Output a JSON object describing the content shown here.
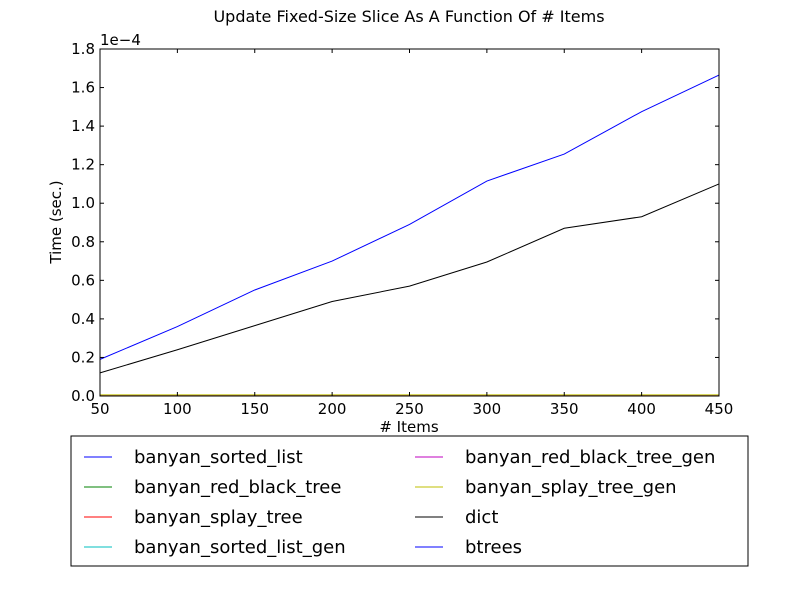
{
  "chart_data": {
    "type": "line",
    "title": "Update Fixed-Size Slice As A Function Of # Items",
    "xlabel": "# Items",
    "ylabel": "Time (sec.)",
    "y_offset_label": "1e−4",
    "x": [
      50,
      100,
      150,
      200,
      250,
      300,
      350,
      400,
      450
    ],
    "xlim": [
      50,
      450
    ],
    "ylim": [
      0,
      1.8
    ],
    "xticks": [
      50,
      100,
      150,
      200,
      250,
      300,
      350,
      400,
      450
    ],
    "yticks": [
      0.0,
      0.2,
      0.4,
      0.6,
      0.8,
      1.0,
      1.2,
      1.4,
      1.6,
      1.8
    ],
    "ytick_labels": [
      "0.0",
      "0.2",
      "0.4",
      "0.6",
      "0.8",
      "1.0",
      "1.2",
      "1.4",
      "1.6",
      "1.8"
    ],
    "grid": false,
    "legend_placement": "below",
    "series": [
      {
        "name": "banyan_sorted_list",
        "color": "#0000ff",
        "values": [
          0.004,
          0.004,
          0.004,
          0.004,
          0.004,
          0.004,
          0.004,
          0.004,
          0.004
        ]
      },
      {
        "name": "banyan_red_black_tree",
        "color": "#008000",
        "values": [
          0.004,
          0.004,
          0.004,
          0.004,
          0.004,
          0.004,
          0.004,
          0.004,
          0.004
        ]
      },
      {
        "name": "banyan_splay_tree",
        "color": "#ff0000",
        "values": [
          0.004,
          0.004,
          0.004,
          0.004,
          0.004,
          0.004,
          0.004,
          0.004,
          0.004
        ]
      },
      {
        "name": "banyan_sorted_list_gen",
        "color": "#00bfbf",
        "values": [
          0.004,
          0.004,
          0.004,
          0.004,
          0.004,
          0.004,
          0.004,
          0.004,
          0.004
        ]
      },
      {
        "name": "banyan_red_black_tree_gen",
        "color": "#bf00bf",
        "values": [
          0.004,
          0.004,
          0.004,
          0.004,
          0.004,
          0.004,
          0.004,
          0.004,
          0.004
        ]
      },
      {
        "name": "banyan_splay_tree_gen",
        "color": "#bfbf00",
        "values": [
          0.006,
          0.006,
          0.006,
          0.006,
          0.006,
          0.006,
          0.006,
          0.006,
          0.006
        ]
      },
      {
        "name": "dict",
        "color": "#000000",
        "values": [
          0.12,
          0.24,
          0.365,
          0.49,
          0.57,
          0.695,
          0.87,
          0.93,
          1.1
        ]
      },
      {
        "name": "btrees",
        "color": "#0000ff",
        "values": [
          0.19,
          0.36,
          0.55,
          0.7,
          0.89,
          1.115,
          1.255,
          1.475,
          1.665
        ]
      }
    ]
  }
}
